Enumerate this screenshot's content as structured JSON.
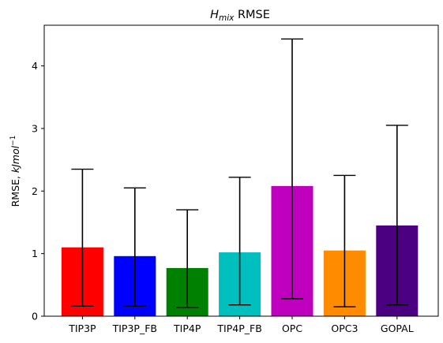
{
  "chart_data": {
    "type": "bar",
    "title_main": "H",
    "title_sub": "mix",
    "title_rest": " RMSE",
    "ylabel_prefix": "RMSE, ",
    "ylabel_unit": "kJmol",
    "ylabel_exp": "−1",
    "categories": [
      "TIP3P",
      "TIP3P_FB",
      "TIP4P",
      "TIP4P_FB",
      "OPC",
      "OPC3",
      "GOPAL"
    ],
    "values": [
      1.1,
      0.96,
      0.77,
      1.02,
      2.08,
      1.05,
      1.45
    ],
    "err_low": [
      0.16,
      0.16,
      0.14,
      0.18,
      0.28,
      0.15,
      0.18
    ],
    "err_high": [
      2.35,
      2.05,
      1.7,
      2.22,
      4.43,
      2.25,
      3.05
    ],
    "colors": [
      "#ff0000",
      "#0000ff",
      "#008000",
      "#00bfbf",
      "#bf00bf",
      "#ff8c00",
      "#4b0082"
    ],
    "ylim": [
      0,
      4.65
    ],
    "yticks": [
      "0",
      "1",
      "2",
      "3",
      "4"
    ]
  }
}
